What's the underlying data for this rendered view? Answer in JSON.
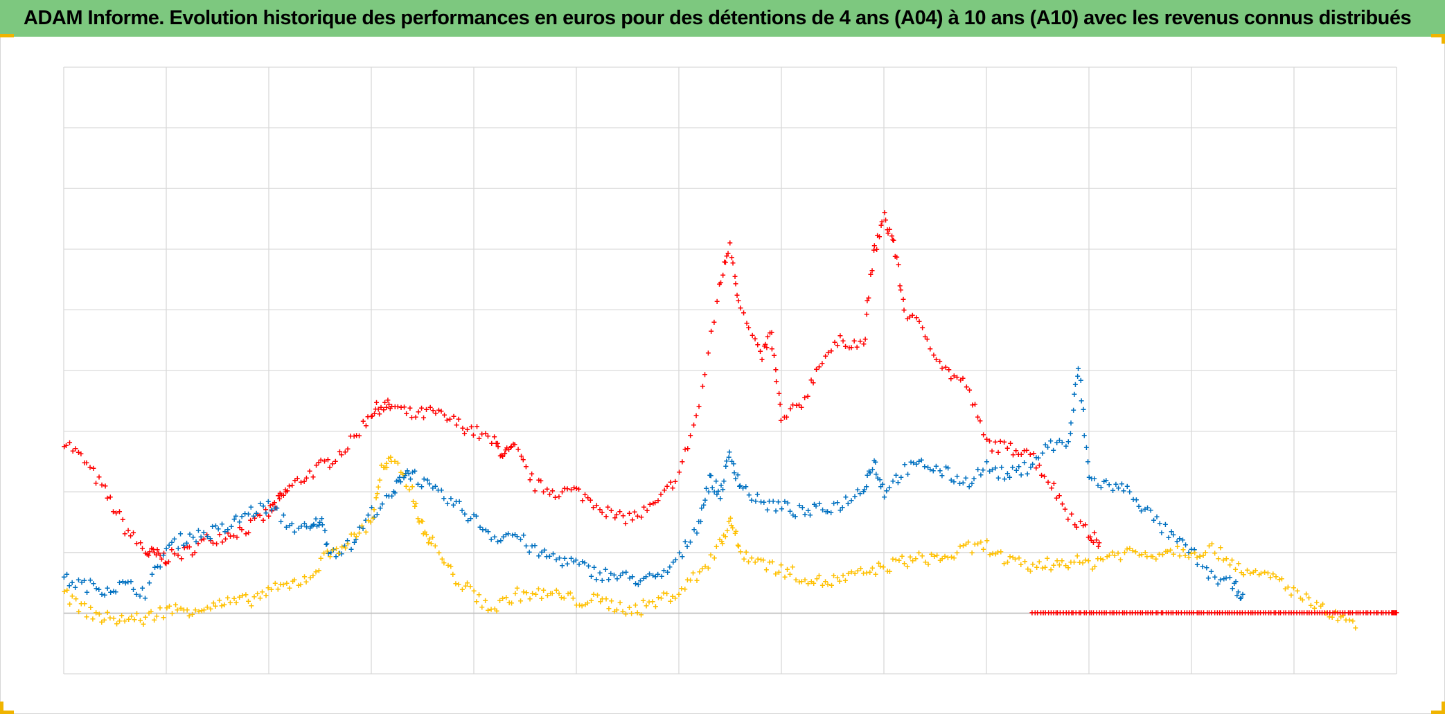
{
  "title": "ADAM Informe. Evolution historique des performances en euros pour des détentions de 4 ans (A04) à 10 ans (A10) avec les revenus connus distribués",
  "colors": {
    "title_bar": "#7dc87f",
    "frame_corner": "#f0b400",
    "grid": "#d9d9d9",
    "zero_line": "#bfbfbf"
  },
  "chart_data": {
    "type": "scatter",
    "marker": "plus",
    "grid": true,
    "legend": "none",
    "x_divisions": 13,
    "xlim": [
      0,
      13
    ],
    "ylim": [
      -1,
      9
    ],
    "series": [
      {
        "color": "#ff0000",
        "points": [
          [
            0.0,
            2.85
          ],
          [
            0.2,
            2.5
          ],
          [
            0.4,
            2.0
          ],
          [
            0.6,
            1.4
          ],
          [
            0.8,
            1.0
          ],
          [
            0.9,
            0.95
          ],
          [
            1.0,
            0.9
          ],
          [
            1.2,
            1.0
          ],
          [
            1.4,
            1.2
          ],
          [
            1.6,
            1.3
          ],
          [
            1.8,
            1.4
          ],
          [
            2.0,
            1.65
          ],
          [
            2.1,
            1.85
          ],
          [
            2.2,
            2.05
          ],
          [
            2.4,
            2.3
          ],
          [
            2.6,
            2.5
          ],
          [
            2.8,
            2.8
          ],
          [
            3.0,
            3.3
          ],
          [
            3.1,
            3.4
          ],
          [
            3.2,
            3.4
          ],
          [
            3.4,
            3.25
          ],
          [
            3.6,
            3.3
          ],
          [
            3.8,
            3.15
          ],
          [
            4.0,
            3.0
          ],
          [
            4.2,
            2.8
          ],
          [
            4.3,
            2.6
          ],
          [
            4.4,
            2.7
          ],
          [
            4.6,
            2.1
          ],
          [
            4.8,
            2.0
          ],
          [
            5.0,
            2.0
          ],
          [
            5.2,
            1.8
          ],
          [
            5.4,
            1.55
          ],
          [
            5.6,
            1.6
          ],
          [
            5.8,
            1.8
          ],
          [
            6.0,
            2.3
          ],
          [
            6.2,
            3.4
          ],
          [
            6.4,
            5.4
          ],
          [
            6.5,
            6.1
          ],
          [
            6.6,
            5.0
          ],
          [
            6.8,
            4.2
          ],
          [
            6.9,
            4.6
          ],
          [
            7.0,
            3.15
          ],
          [
            7.2,
            3.45
          ],
          [
            7.4,
            4.2
          ],
          [
            7.6,
            4.5
          ],
          [
            7.8,
            4.4
          ],
          [
            7.9,
            5.9
          ],
          [
            8.0,
            6.5
          ],
          [
            8.1,
            6.1
          ],
          [
            8.2,
            5.0
          ],
          [
            8.4,
            4.6
          ],
          [
            8.6,
            4.0
          ],
          [
            8.8,
            3.75
          ],
          [
            9.0,
            2.8
          ],
          [
            9.2,
            2.7
          ],
          [
            9.4,
            2.7
          ],
          [
            9.6,
            2.2
          ],
          [
            9.8,
            1.65
          ],
          [
            10.0,
            1.3
          ],
          [
            10.1,
            1.15
          ]
        ]
      },
      {
        "color": "#0070c0",
        "points": [
          [
            0.0,
            0.55
          ],
          [
            0.2,
            0.45
          ],
          [
            0.4,
            0.4
          ],
          [
            0.6,
            0.45
          ],
          [
            0.8,
            0.35
          ],
          [
            1.0,
            1.05
          ],
          [
            1.2,
            1.25
          ],
          [
            1.4,
            1.3
          ],
          [
            1.6,
            1.4
          ],
          [
            1.8,
            1.65
          ],
          [
            2.0,
            1.75
          ],
          [
            2.2,
            1.45
          ],
          [
            2.4,
            1.35
          ],
          [
            2.5,
            1.55
          ],
          [
            2.6,
            1.0
          ],
          [
            2.8,
            1.1
          ],
          [
            3.0,
            1.65
          ],
          [
            3.2,
            1.9
          ],
          [
            3.3,
            2.3
          ],
          [
            3.4,
            2.3
          ],
          [
            3.6,
            2.0
          ],
          [
            3.8,
            1.8
          ],
          [
            4.0,
            1.55
          ],
          [
            4.2,
            1.25
          ],
          [
            4.4,
            1.3
          ],
          [
            4.6,
            1.0
          ],
          [
            4.8,
            0.9
          ],
          [
            5.0,
            0.8
          ],
          [
            5.2,
            0.65
          ],
          [
            5.4,
            0.6
          ],
          [
            5.6,
            0.55
          ],
          [
            5.8,
            0.55
          ],
          [
            6.0,
            0.9
          ],
          [
            6.2,
            1.5
          ],
          [
            6.3,
            2.2
          ],
          [
            6.4,
            1.95
          ],
          [
            6.5,
            2.6
          ],
          [
            6.6,
            2.1
          ],
          [
            6.8,
            1.8
          ],
          [
            7.0,
            1.75
          ],
          [
            7.2,
            1.65
          ],
          [
            7.4,
            1.7
          ],
          [
            7.6,
            1.8
          ],
          [
            7.8,
            2.05
          ],
          [
            7.9,
            2.5
          ],
          [
            8.0,
            2.0
          ],
          [
            8.2,
            2.35
          ],
          [
            8.4,
            2.45
          ],
          [
            8.6,
            2.3
          ],
          [
            8.8,
            2.15
          ],
          [
            9.0,
            2.4
          ],
          [
            9.2,
            2.25
          ],
          [
            9.4,
            2.4
          ],
          [
            9.6,
            2.75
          ],
          [
            9.8,
            2.8
          ],
          [
            9.9,
            4.05
          ],
          [
            10.0,
            2.2
          ],
          [
            10.2,
            2.1
          ],
          [
            10.4,
            2.0
          ],
          [
            10.6,
            1.6
          ],
          [
            10.8,
            1.25
          ],
          [
            11.0,
            1.0
          ],
          [
            11.2,
            0.6
          ],
          [
            11.4,
            0.45
          ],
          [
            11.5,
            0.3
          ]
        ]
      },
      {
        "color": "#ffc000",
        "points": [
          [
            0.0,
            0.3
          ],
          [
            0.2,
            0.05
          ],
          [
            0.4,
            -0.1
          ],
          [
            0.6,
            -0.1
          ],
          [
            0.8,
            -0.1
          ],
          [
            1.0,
            0.05
          ],
          [
            1.2,
            0.05
          ],
          [
            1.4,
            0.1
          ],
          [
            1.6,
            0.15
          ],
          [
            1.8,
            0.2
          ],
          [
            2.0,
            0.35
          ],
          [
            2.2,
            0.45
          ],
          [
            2.4,
            0.6
          ],
          [
            2.6,
            1.0
          ],
          [
            2.8,
            1.2
          ],
          [
            3.0,
            1.5
          ],
          [
            3.1,
            2.35
          ],
          [
            3.2,
            2.5
          ],
          [
            3.4,
            2.0
          ],
          [
            3.5,
            1.4
          ],
          [
            3.6,
            1.15
          ],
          [
            3.8,
            0.6
          ],
          [
            4.0,
            0.3
          ],
          [
            4.2,
            0.05
          ],
          [
            4.4,
            0.3
          ],
          [
            4.6,
            0.3
          ],
          [
            4.8,
            0.3
          ],
          [
            5.0,
            0.2
          ],
          [
            5.2,
            0.2
          ],
          [
            5.4,
            0.1
          ],
          [
            5.6,
            0.05
          ],
          [
            5.8,
            0.2
          ],
          [
            6.0,
            0.35
          ],
          [
            6.2,
            0.65
          ],
          [
            6.4,
            1.1
          ],
          [
            6.5,
            1.55
          ],
          [
            6.6,
            1.0
          ],
          [
            6.8,
            0.85
          ],
          [
            7.0,
            0.7
          ],
          [
            7.2,
            0.6
          ],
          [
            7.4,
            0.5
          ],
          [
            7.6,
            0.55
          ],
          [
            7.8,
            0.65
          ],
          [
            8.0,
            0.75
          ],
          [
            8.2,
            0.85
          ],
          [
            8.4,
            0.9
          ],
          [
            8.6,
            0.9
          ],
          [
            8.8,
            1.05
          ],
          [
            9.0,
            1.1
          ],
          [
            9.2,
            0.85
          ],
          [
            9.4,
            0.75
          ],
          [
            9.6,
            0.8
          ],
          [
            9.8,
            0.85
          ],
          [
            10.0,
            0.8
          ],
          [
            10.2,
            0.95
          ],
          [
            10.4,
            1.0
          ],
          [
            10.6,
            0.95
          ],
          [
            10.8,
            1.05
          ],
          [
            11.0,
            1.0
          ],
          [
            11.2,
            1.05
          ],
          [
            11.4,
            0.85
          ],
          [
            11.6,
            0.6
          ],
          [
            11.8,
            0.6
          ],
          [
            12.0,
            0.35
          ],
          [
            12.2,
            0.1
          ],
          [
            12.4,
            -0.05
          ],
          [
            12.6,
            -0.25
          ]
        ]
      },
      {
        "color": "#ff0000",
        "points": [
          [
            9.45,
            0.0
          ],
          [
            9.7,
            0.0
          ],
          [
            9.95,
            0.0
          ],
          [
            10.2,
            0.0
          ],
          [
            10.45,
            0.0
          ],
          [
            10.7,
            0.0
          ],
          [
            10.95,
            0.0
          ],
          [
            11.2,
            0.0
          ],
          [
            11.45,
            0.0
          ],
          [
            11.7,
            0.0
          ],
          [
            11.95,
            0.0
          ],
          [
            12.2,
            0.0
          ],
          [
            12.45,
            0.0
          ],
          [
            12.7,
            0.0
          ],
          [
            12.95,
            0.0
          ],
          [
            13.0,
            0.0
          ]
        ]
      }
    ]
  }
}
